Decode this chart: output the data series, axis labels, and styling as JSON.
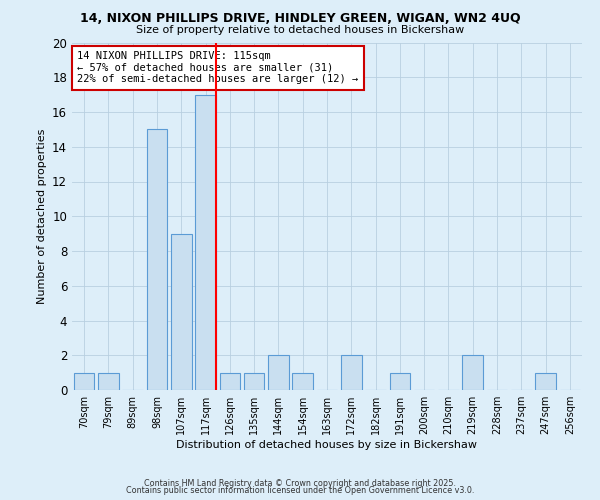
{
  "title": "14, NIXON PHILLIPS DRIVE, HINDLEY GREEN, WIGAN, WN2 4UQ",
  "subtitle": "Size of property relative to detached houses in Bickershaw",
  "xlabel": "Distribution of detached houses by size in Bickershaw",
  "ylabel": "Number of detached properties",
  "bin_labels": [
    "70sqm",
    "79sqm",
    "89sqm",
    "98sqm",
    "107sqm",
    "117sqm",
    "126sqm",
    "135sqm",
    "144sqm",
    "154sqm",
    "163sqm",
    "172sqm",
    "182sqm",
    "191sqm",
    "200sqm",
    "210sqm",
    "219sqm",
    "228sqm",
    "237sqm",
    "247sqm",
    "256sqm"
  ],
  "bar_values": [
    1,
    1,
    0,
    15,
    9,
    17,
    1,
    1,
    2,
    1,
    0,
    2,
    0,
    1,
    0,
    0,
    2,
    0,
    0,
    1,
    0
  ],
  "bar_color": "#c9dff0",
  "bar_edge_color": "#5b9bd5",
  "red_line_index": 5,
  "ylim": [
    0,
    20
  ],
  "yticks": [
    0,
    2,
    4,
    6,
    8,
    10,
    12,
    14,
    16,
    18,
    20
  ],
  "annotation_lines": [
    "14 NIXON PHILLIPS DRIVE: 115sqm",
    "← 57% of detached houses are smaller (31)",
    "22% of semi-detached houses are larger (12) →"
  ],
  "annotation_box_color": "#ffffff",
  "annotation_box_edge": "#cc0000",
  "bg_color": "#ddeef9",
  "footer1": "Contains HM Land Registry data © Crown copyright and database right 2025.",
  "footer2": "Contains public sector information licensed under the Open Government Licence v3.0."
}
